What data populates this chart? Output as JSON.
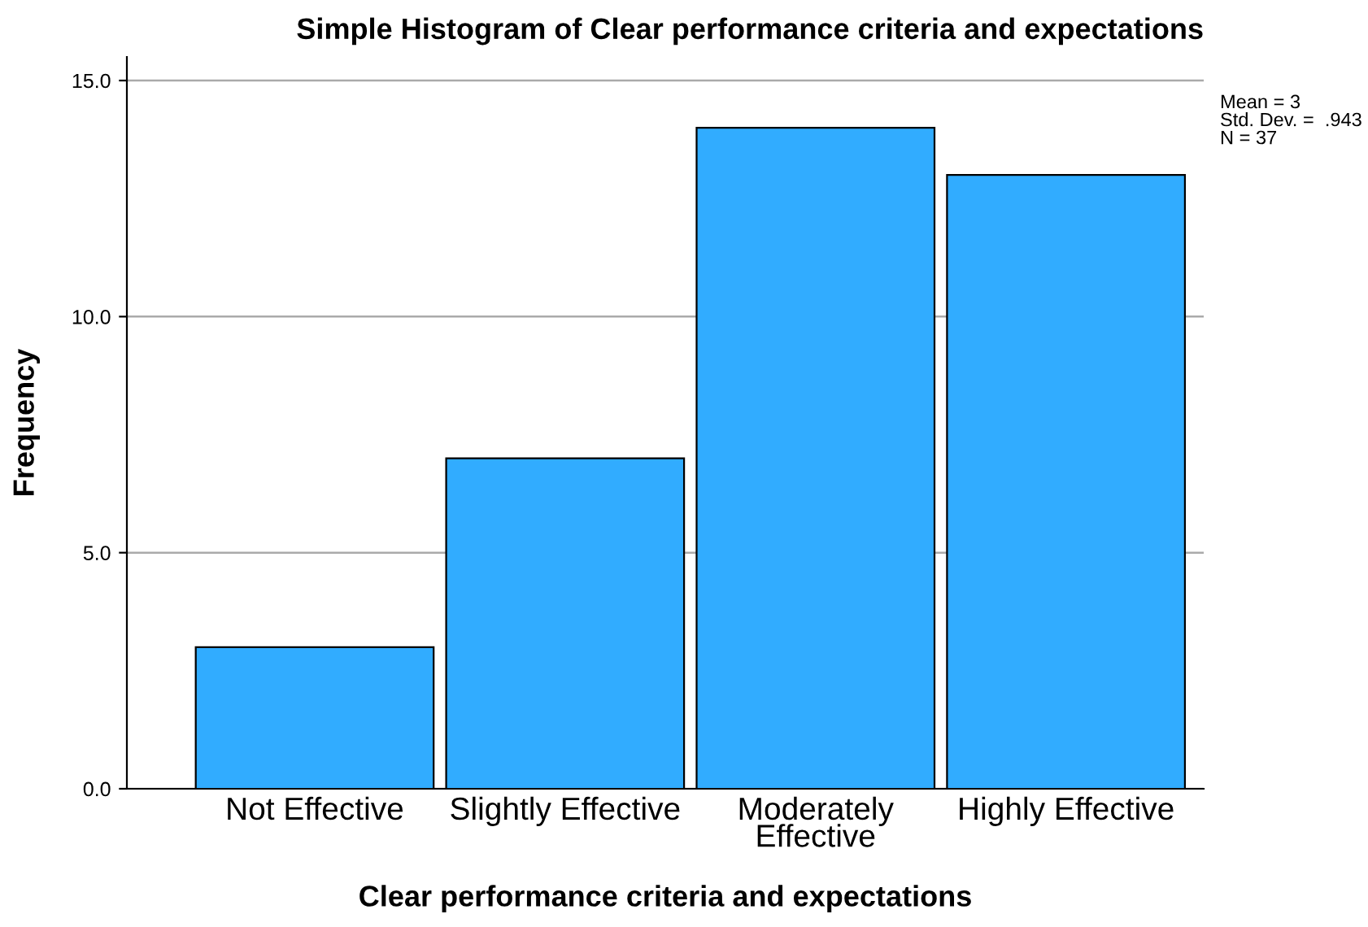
{
  "chart_data": {
    "type": "bar",
    "title": "Simple Histogram of Clear performance criteria and expectations",
    "xlabel": "Clear performance criteria and expectations",
    "ylabel": "Frequency",
    "categories": [
      "Not Effective",
      "Slightly Effective",
      "Moderately\nEffective",
      "Highly Effective"
    ],
    "values": [
      3,
      7,
      14,
      13
    ],
    "color": "#31acff",
    "ylim": [
      0,
      15.5
    ],
    "yticks": [
      {
        "value": 0,
        "label": "0.0"
      },
      {
        "value": 5,
        "label": "5.0"
      },
      {
        "value": 10,
        "label": "10.0"
      },
      {
        "value": 15,
        "label": "15.0"
      }
    ],
    "grid": "y",
    "annotations": [
      "Mean = 3\nStd. Dev. =  .943\nN = 37"
    ]
  }
}
